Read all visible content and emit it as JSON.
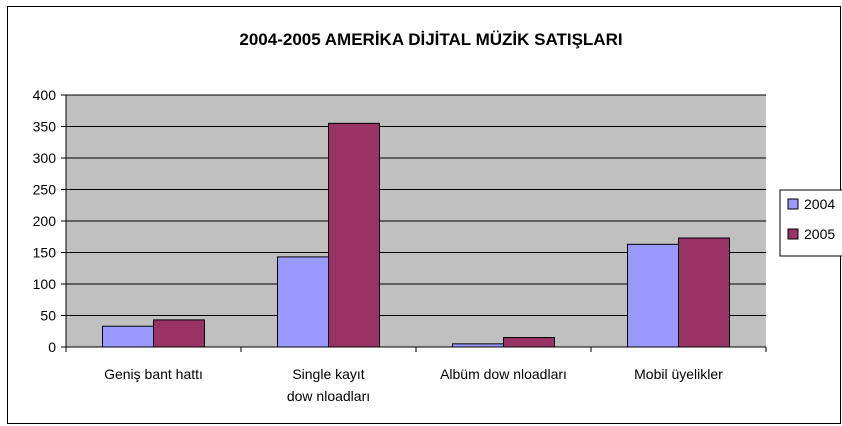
{
  "chart_data": {
    "type": "bar",
    "title": "2004-2005 AMERİKA DİJİTAL MÜZİK SATIŞLARI",
    "categories": [
      [
        "Geniş bant hattı"
      ],
      [
        "Single kayıt",
        "dow nloadları"
      ],
      [
        "Albüm dow nloadları"
      ],
      [
        "Mobil üyelikler"
      ]
    ],
    "series": [
      {
        "name": "2004",
        "values": [
          33,
          143,
          5,
          163
        ],
        "color": "#9999ff"
      },
      {
        "name": "2005",
        "values": [
          43,
          355,
          15,
          173
        ],
        "color": "#993366"
      }
    ],
    "ylim": [
      0,
      400
    ],
    "yticks": [
      "0",
      "50",
      "100",
      "150",
      "200",
      "250",
      "300",
      "350",
      "400"
    ],
    "grid": true,
    "plot_background": "#c0c0c0",
    "legend_position": "right"
  }
}
